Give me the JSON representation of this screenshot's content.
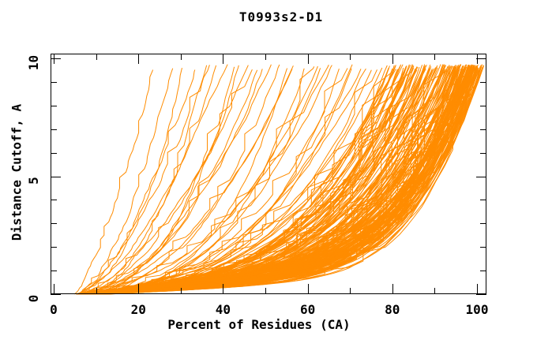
{
  "figure": {
    "background": "#ffffff",
    "text_color": "#000000"
  },
  "chart_data": {
    "type": "line",
    "title": "T0993s2-D1",
    "xlabel": "Percent of Residues (CA)",
    "ylabel": "Distance Cutoff, A",
    "xlim": [
      0,
      102.2
    ],
    "ylim": [
      0,
      10.2
    ],
    "x_major_ticks": [
      0,
      20,
      40,
      60,
      80,
      100
    ],
    "x_tick_labels": [
      "0",
      "20",
      "40",
      "60",
      "80",
      "100"
    ],
    "x_minor_ticks": [
      10,
      30,
      50,
      70,
      90
    ],
    "y_major_ticks": [
      0,
      5,
      10
    ],
    "y_tick_labels": [
      "0",
      "5",
      "10"
    ],
    "y_minor_ticks": [
      1,
      2,
      3,
      4,
      6,
      7,
      8,
      9
    ],
    "grid": false,
    "legend": "none",
    "line_color": "#FF8C00",
    "axis_color": "#000000",
    "curve_model": "Each curve i is x(u)=x0+(xe-x0)*u, y(u)=L*u+(ymax-L)*u^k for u in [0,1], truncated at y_top; estimated from plot (individual model curves are unlabeled and visually unresolvable).",
    "ymax": 10.05,
    "y_top_range": [
      9.5,
      9.75
    ],
    "linear_component_range": [
      0.7,
      2.1
    ],
    "curves": [
      [
        4.6,
        24,
        1.5
      ],
      [
        5.2,
        28.5,
        1.9
      ],
      [
        6.1,
        31,
        2.2
      ],
      [
        5.8,
        34,
        1.7
      ],
      [
        7.0,
        36.5,
        2.4
      ],
      [
        6.4,
        39,
        2.0
      ],
      [
        5.5,
        41.5,
        1.8
      ],
      [
        7.6,
        44,
        2.5
      ],
      [
        6.8,
        46,
        2.1
      ],
      [
        5.9,
        48.5,
        1.75
      ],
      [
        7.2,
        50.5,
        2.3
      ],
      [
        6.2,
        52,
        1.95
      ],
      [
        8.1,
        43,
        2.6
      ],
      [
        5.4,
        37.5,
        1.6
      ],
      [
        6.6,
        49,
        2.2
      ],
      [
        6.5,
        54,
        2.5
      ],
      [
        7.8,
        56,
        3.0
      ],
      [
        5.6,
        58,
        2.3
      ],
      [
        8.4,
        60,
        3.3
      ],
      [
        6.9,
        62,
        2.7
      ],
      [
        7.3,
        64,
        3.1
      ],
      [
        5.8,
        66,
        2.4
      ],
      [
        9.0,
        68,
        3.5
      ],
      [
        6.3,
        70,
        2.8
      ],
      [
        7.7,
        72,
        3.2
      ],
      [
        8.8,
        74,
        2.6
      ],
      [
        6.0,
        76,
        3.4
      ],
      [
        7.1,
        78,
        2.9
      ],
      [
        9.4,
        80,
        3.6
      ],
      [
        10.2,
        57,
        2.2
      ],
      [
        5.3,
        63,
        3.0
      ],
      [
        8.0,
        67,
        2.5
      ],
      [
        6.7,
        71,
        3.3
      ],
      [
        9.8,
        75,
        2.7
      ],
      [
        7.5,
        79,
        3.1
      ],
      [
        6.1,
        80.5,
        3.4
      ],
      [
        7.4,
        81,
        4.0
      ],
      [
        5.7,
        82,
        3.1
      ],
      [
        8.2,
        82.5,
        4.4
      ],
      [
        6.6,
        83,
        3.7
      ],
      [
        9.1,
        83.5,
        4.8
      ],
      [
        7.0,
        84,
        3.3
      ],
      [
        5.9,
        84.5,
        4.1
      ],
      [
        8.6,
        85,
        3.6
      ],
      [
        6.4,
        85.5,
        4.6
      ],
      [
        10.3,
        86,
        3.9
      ],
      [
        7.8,
        86.5,
        5.0
      ],
      [
        5.5,
        87,
        3.2
      ],
      [
        9.5,
        87.5,
        4.3
      ],
      [
        6.9,
        88,
        3.8
      ],
      [
        8.0,
        88.5,
        5.2
      ],
      [
        7.2,
        89,
        3.5
      ],
      [
        10.8,
        89.5,
        4.7
      ],
      [
        6.2,
        90,
        4.0
      ],
      [
        9.2,
        90.5,
        3.4
      ],
      [
        7.6,
        91,
        4.9
      ],
      [
        5.8,
        91.5,
        3.7
      ],
      [
        8.9,
        92,
        4.2
      ],
      [
        6.5,
        92.5,
        5.1
      ],
      [
        11.5,
        93,
        3.9
      ],
      [
        7.1,
        93.5,
        4.5
      ],
      [
        9.7,
        94,
        3.6
      ],
      [
        8.3,
        94,
        5.0
      ],
      [
        6.0,
        81.5,
        3.5
      ],
      [
        7.3,
        84.2,
        4.2
      ],
      [
        8.7,
        86.8,
        3.3
      ],
      [
        5.6,
        88.4,
        4.8
      ],
      [
        9.9,
        90.8,
        3.7
      ],
      [
        6.9,
        92.8,
        4.4
      ],
      [
        6.0,
        94.5,
        4.6
      ],
      [
        7.9,
        95,
        5.5
      ],
      [
        5.6,
        95.3,
        4.2
      ],
      [
        9.3,
        95.6,
        6.2
      ],
      [
        6.8,
        96,
        4.9
      ],
      [
        8.5,
        96.3,
        5.8
      ],
      [
        7.3,
        96.6,
        4.4
      ],
      [
        10.6,
        97,
        6.5
      ],
      [
        6.3,
        97.3,
        5.2
      ],
      [
        9.0,
        97.6,
        4.7
      ],
      [
        7.7,
        98,
        6.0
      ],
      [
        5.9,
        98.2,
        5.4
      ],
      [
        11.2,
        98.4,
        4.5
      ],
      [
        8.1,
        98.6,
        6.8
      ],
      [
        6.6,
        98.8,
        5.0
      ],
      [
        9.9,
        99,
        5.9
      ],
      [
        7.0,
        99.2,
        4.8
      ],
      [
        12.4,
        99.4,
        6.3
      ],
      [
        8.8,
        99.6,
        5.3
      ],
      [
        6.1,
        99.8,
        7.0
      ],
      [
        10.1,
        100,
        4.6
      ],
      [
        7.5,
        100,
        5.7
      ],
      [
        9.4,
        100.2,
        6.1
      ],
      [
        6.7,
        100.4,
        5.1
      ],
      [
        8.2,
        100.6,
        6.6
      ],
      [
        11.8,
        100.8,
        4.9
      ],
      [
        7.2,
        101,
        5.6
      ],
      [
        9.6,
        101.2,
        6.9
      ],
      [
        6.4,
        101.4,
        5.2
      ],
      [
        8.7,
        101.6,
        6.0
      ],
      [
        10.4,
        101.8,
        4.7
      ],
      [
        7.8,
        102,
        6.4
      ],
      [
        12.9,
        99,
        5.5
      ],
      [
        5.7,
        96.8,
        6.7
      ],
      [
        5.8,
        95.8,
        5.1
      ],
      [
        8.4,
        96.5,
        4.5
      ],
      [
        7.1,
        97.8,
        6.2
      ],
      [
        10.9,
        98.3,
        5.0
      ],
      [
        6.2,
        99.1,
        5.8
      ],
      [
        9.1,
        99.7,
        4.9
      ],
      [
        7.6,
        100.5,
        6.6
      ],
      [
        8.9,
        101.3,
        5.4
      ]
    ]
  }
}
